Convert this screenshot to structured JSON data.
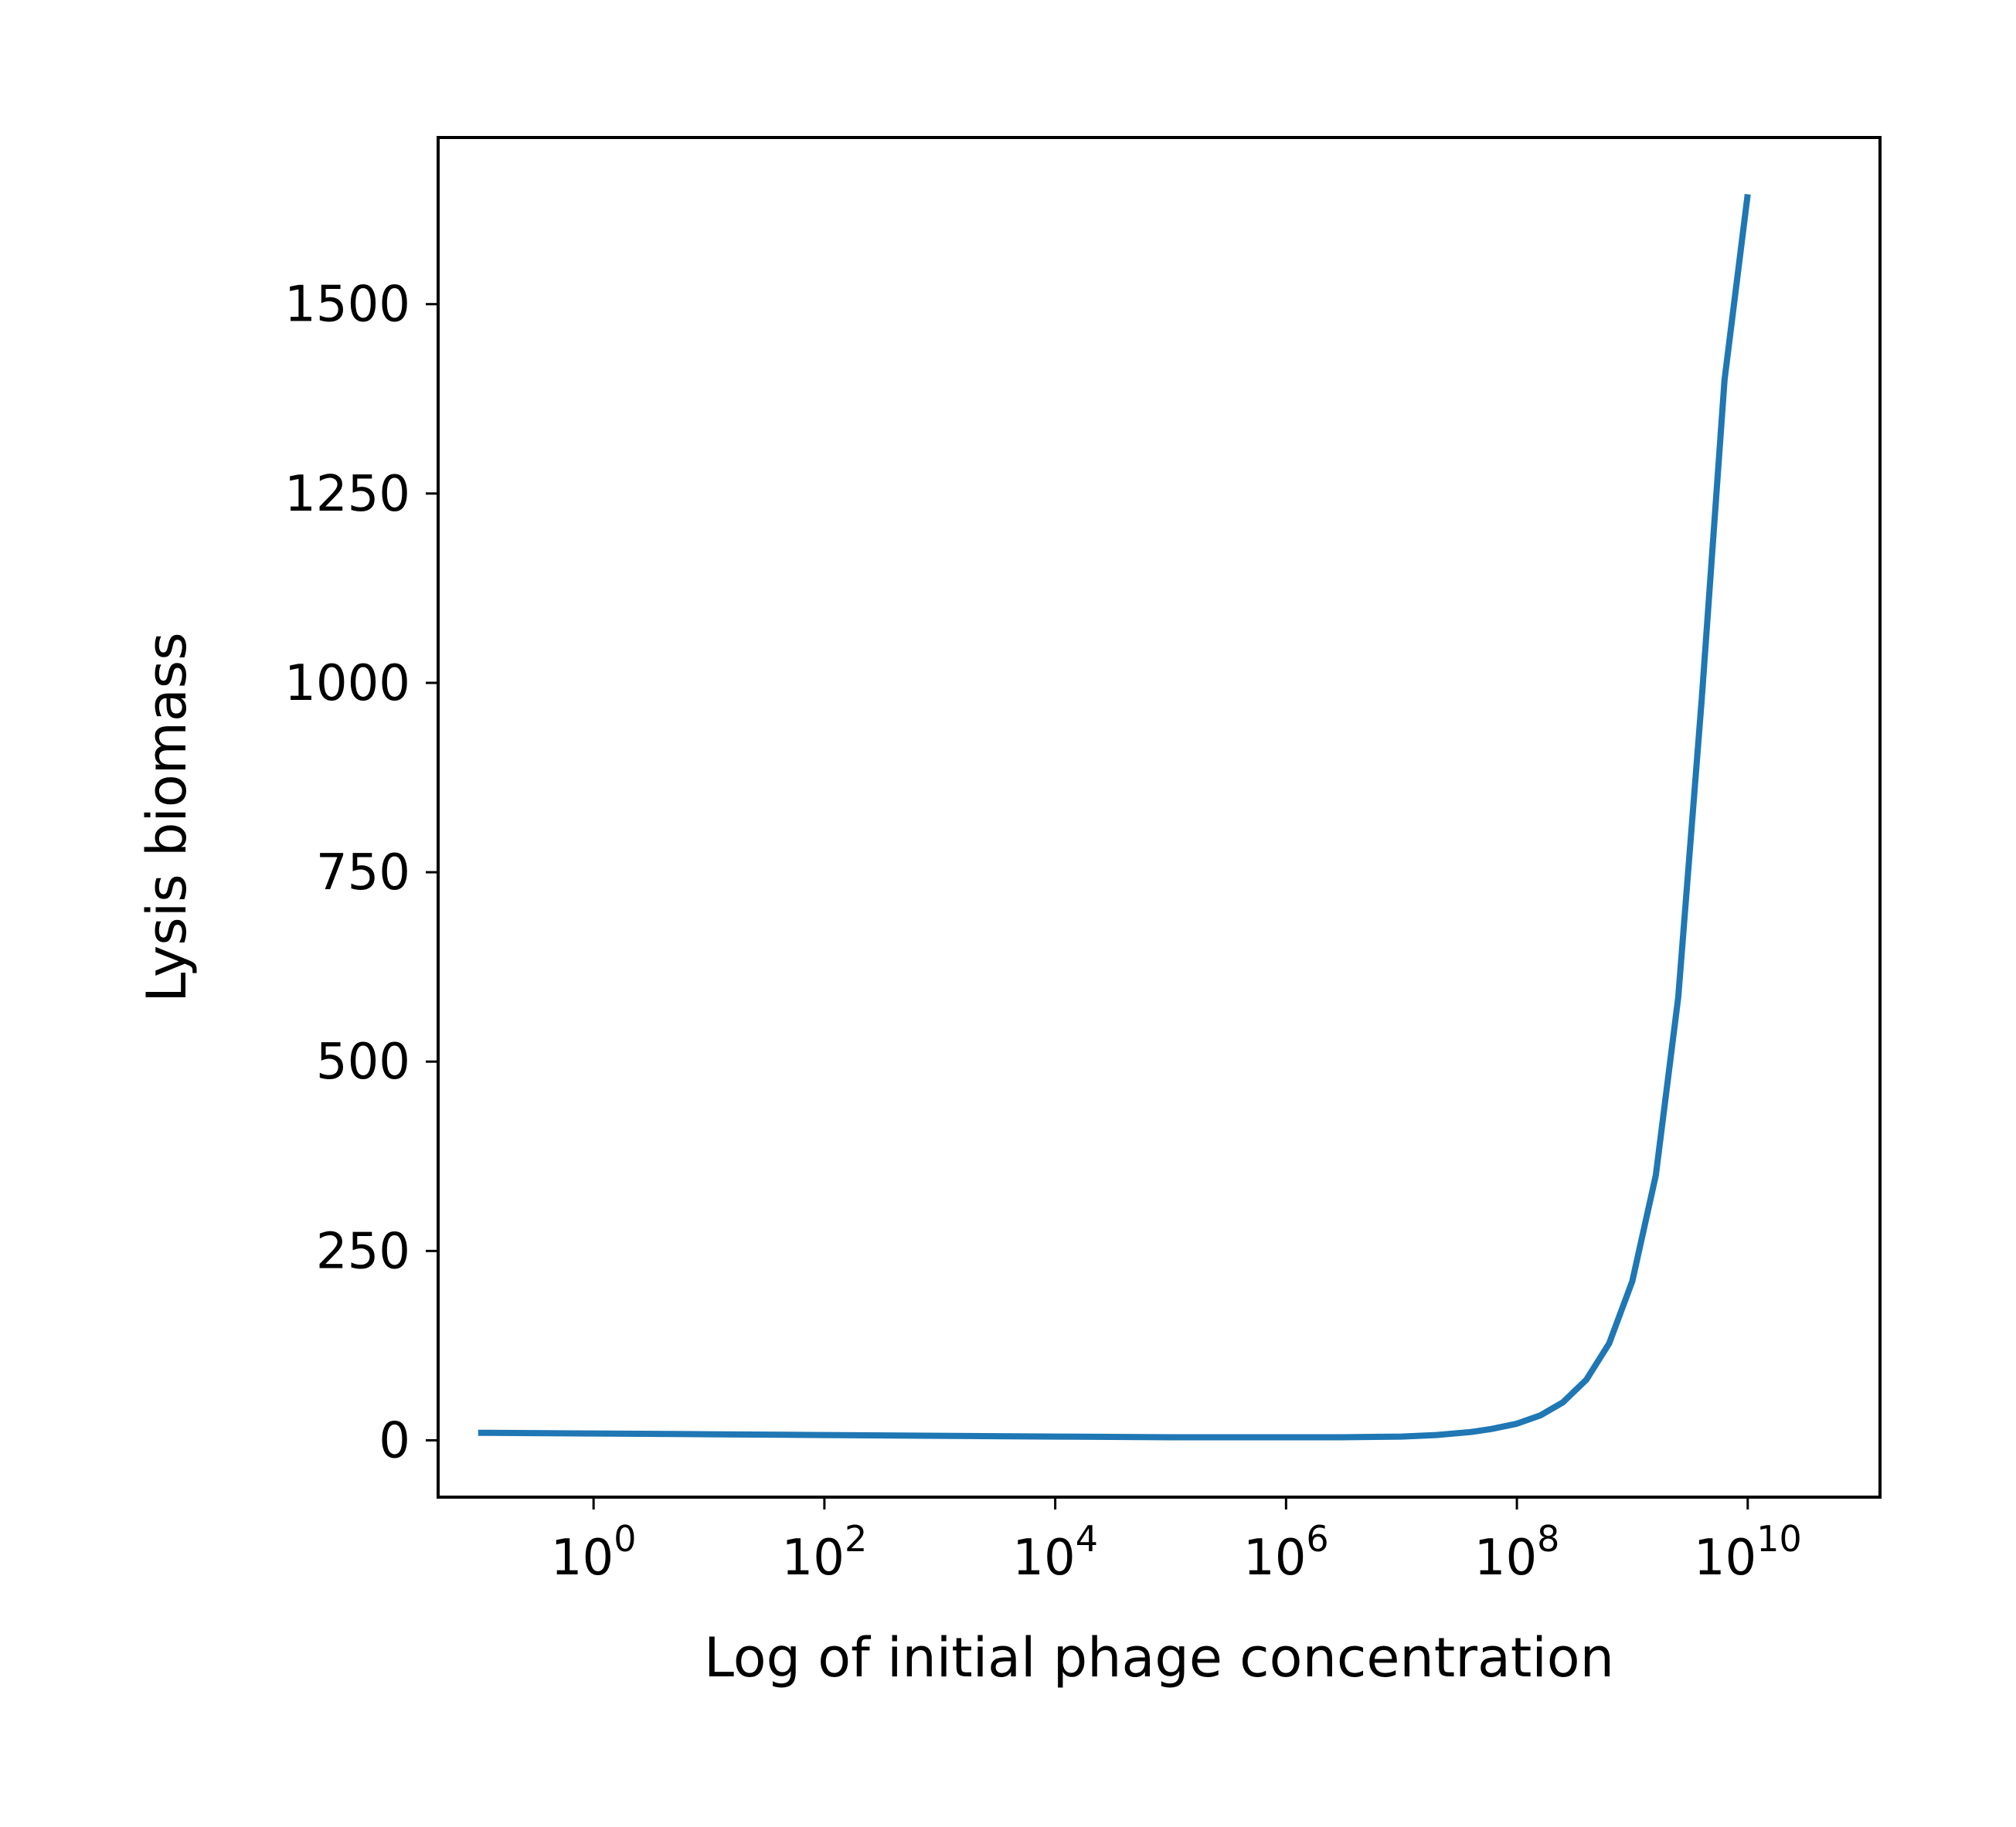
{
  "chart_data": {
    "type": "line",
    "title": "",
    "xlabel": "Log of initial phage concentration",
    "ylabel": "Lysis biomass",
    "xscale": "log",
    "xlim": [
      0.045,
      140000000000.0
    ],
    "ylim": [
      -75,
      1720
    ],
    "grid": false,
    "x_ticks": [
      {
        "value": 1,
        "base": "10",
        "exp": "0"
      },
      {
        "value": 100,
        "base": "10",
        "exp": "2"
      },
      {
        "value": 10000,
        "base": "10",
        "exp": "4"
      },
      {
        "value": 1000000,
        "base": "10",
        "exp": "6"
      },
      {
        "value": 100000000,
        "base": "10",
        "exp": "8"
      },
      {
        "value": 10000000000,
        "base": "10",
        "exp": "10"
      }
    ],
    "y_ticks": [
      {
        "value": 0,
        "label": "0"
      },
      {
        "value": 250,
        "label": "250"
      },
      {
        "value": 500,
        "label": "500"
      },
      {
        "value": 750,
        "label": "750"
      },
      {
        "value": 1000,
        "label": "1000"
      },
      {
        "value": 1250,
        "label": "1250"
      },
      {
        "value": 1500,
        "label": "1500"
      }
    ],
    "series": [
      {
        "color": "#1f77b4",
        "x": [
          0.1,
          1,
          10,
          100,
          1000,
          10000,
          100000,
          1000000,
          3000000,
          10000000,
          20000000,
          40000000,
          60000000,
          100000000,
          160000000,
          250000000,
          400000000,
          630000000,
          1000000000,
          1600000000,
          2500000000,
          4000000000,
          6300000000,
          10000000000
        ],
        "y": [
          10,
          9,
          8,
          7,
          6,
          5,
          4,
          4,
          4,
          5,
          7,
          11,
          15,
          22,
          33,
          50,
          80,
          128,
          210,
          350,
          585,
          980,
          1400,
          1645
        ]
      }
    ]
  }
}
